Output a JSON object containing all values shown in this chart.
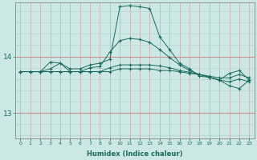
{
  "xlabel": "Humidex (Indice chaleur)",
  "bg_color": "#cce8e4",
  "line_color": "#1a6b5e",
  "grid_color_minor": "#b8d8d4",
  "grid_color_major": "#c8a0a0",
  "x_ticks": [
    0,
    1,
    2,
    3,
    4,
    5,
    6,
    7,
    8,
    9,
    10,
    11,
    12,
    13,
    14,
    15,
    16,
    17,
    18,
    19,
    20,
    21,
    22,
    23
  ],
  "y_ticks": [
    13,
    14
  ],
  "ylim": [
    12.55,
    14.95
  ],
  "xlim": [
    -0.5,
    23.5
  ],
  "series": [
    [
      13.73,
      13.73,
      13.73,
      13.73,
      13.73,
      13.73,
      13.73,
      13.73,
      13.73,
      13.73,
      13.78,
      13.78,
      13.78,
      13.78,
      13.75,
      13.75,
      13.73,
      13.7,
      13.68,
      13.65,
      13.62,
      13.62,
      13.68,
      13.62
    ],
    [
      13.73,
      13.73,
      13.73,
      13.78,
      13.88,
      13.78,
      13.78,
      13.85,
      13.88,
      13.95,
      14.88,
      14.9,
      14.88,
      14.85,
      14.35,
      14.12,
      13.88,
      13.78,
      13.65,
      13.63,
      13.58,
      13.48,
      13.43,
      13.58
    ],
    [
      13.73,
      13.73,
      13.73,
      13.9,
      13.88,
      13.73,
      13.73,
      13.8,
      13.82,
      14.08,
      14.28,
      14.32,
      14.3,
      14.25,
      14.12,
      13.98,
      13.85,
      13.75,
      13.68,
      13.63,
      13.58,
      13.7,
      13.75,
      13.58
    ],
    [
      13.73,
      13.73,
      13.73,
      13.73,
      13.73,
      13.73,
      13.73,
      13.73,
      13.73,
      13.8,
      13.85,
      13.85,
      13.85,
      13.85,
      13.83,
      13.8,
      13.75,
      13.72,
      13.68,
      13.63,
      13.58,
      13.55,
      13.6,
      13.55
    ]
  ]
}
